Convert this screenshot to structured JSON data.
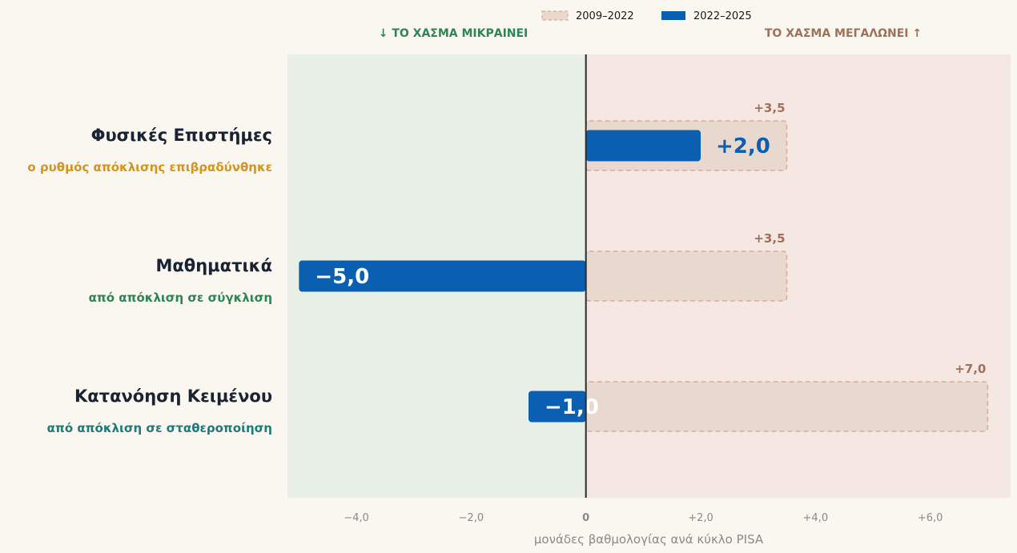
{
  "chart_data": {
    "type": "bar",
    "orientation": "horizontal",
    "categories": [
      {
        "name": "Φυσικές Επιστήμες",
        "subtitle": "ο ρυθμός απόκλισης επιβραδύνθηκε",
        "subtitle_color": "#d4951f"
      },
      {
        "name": "Μαθηματικά",
        "subtitle": "από απόκλιση σε σύγκλιση",
        "subtitle_color": "#2e8556"
      },
      {
        "name": "Κατανόηση Κειμένου",
        "subtitle": "από απόκλιση σε σταθεροποίηση",
        "subtitle_color": "#1f7a7a"
      }
    ],
    "series": [
      {
        "name": "2009–2022",
        "values": [
          3.5,
          3.5,
          7.0
        ],
        "labels": [
          "+3,5",
          "+3,5",
          "+7,0"
        ]
      },
      {
        "name": "2022–2025",
        "values": [
          2.0,
          -5.0,
          -1.0
        ],
        "labels": [
          "+2,0",
          "−5,0",
          "−1,0"
        ]
      }
    ],
    "xlabel": "μονάδες βαθμολογίας ανά κύκλο PISA",
    "xlim": [
      -5.2,
      7.4
    ],
    "xticks": [
      {
        "value": -4,
        "label": "−4,0"
      },
      {
        "value": -2,
        "label": "−2,0"
      },
      {
        "value": 0,
        "label": "0"
      },
      {
        "value": 2,
        "label": "+2,0"
      },
      {
        "value": 4,
        "label": "+4,0"
      },
      {
        "value": 6,
        "label": "+6,0"
      }
    ],
    "region_labels": {
      "left": "↓ ΤΟ ΧΑΣΜΑ ΜΙΚΡΑΙΝΕΙ",
      "right": "ΤΟ ΧΑΣΜΑ ΜΕΓΑΛΩΝΕΙ ↑"
    },
    "legend_position": "top-center",
    "grid": false,
    "colors": {
      "background": "#faf6f0",
      "left_region": "#e8efe7",
      "right_region": "#f5e8e3",
      "old_fill": "#e8d8ce",
      "old_stroke": "#d8ad9c",
      "old_label": "#a0705a",
      "new_fill": "#0b5fb0",
      "category_text": "#1a2333",
      "left_region_text": "#2e8556",
      "right_region_text": "#a0705a",
      "axis_line": "#2a2a2a"
    }
  }
}
